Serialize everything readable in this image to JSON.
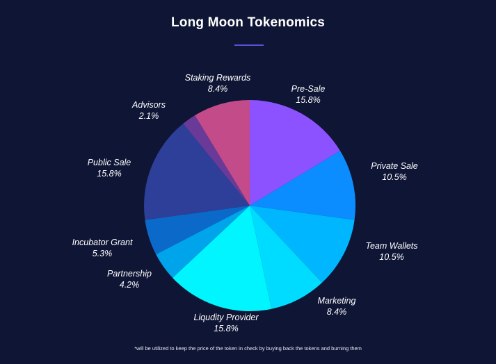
{
  "page": {
    "title": "Long Moon Tokenomics",
    "footnote": "*will be utilized to keep the price of the token in check by buying back the tokens and burning them"
  },
  "colors": {
    "background": "#0f1535",
    "accent_underline": "#5a4fd6"
  },
  "chart_data": {
    "type": "pie",
    "title": "Long Moon Tokenomics",
    "start_angle_deg": 0,
    "direction": "clockwise",
    "slices": [
      {
        "label": "Pre-Sale",
        "value": 15.8,
        "display": "15.8%",
        "color": "#8c52ff"
      },
      {
        "label": "Private Sale",
        "value": 10.5,
        "display": "10.5%",
        "color": "#0b8dff"
      },
      {
        "label": "Team Wallets",
        "value": 10.5,
        "display": "10.5%",
        "color": "#00b7ff"
      },
      {
        "label": "Marketing",
        "value": 8.4,
        "display": "8.4%",
        "color": "#00dcff"
      },
      {
        "label": "Liqudity Provider",
        "value": 15.8,
        "display": "15.8%",
        "color": "#00f5ff"
      },
      {
        "label": "Partnership",
        "value": 4.2,
        "display": "4.2%",
        "color": "#00a4ea"
      },
      {
        "label": "Incubator Grant",
        "value": 5.3,
        "display": "5.3%",
        "color": "#0b6ac9"
      },
      {
        "label": "Public Sale",
        "value": 15.8,
        "display": "15.8%",
        "color": "#2d3f98"
      },
      {
        "label": "Advisors",
        "value": 2.1,
        "display": "2.1%",
        "color": "#6a3a99"
      },
      {
        "label": "Staking Rewards",
        "value": 8.4,
        "display": "8.4%",
        "color": "#c44b8a"
      }
    ]
  }
}
